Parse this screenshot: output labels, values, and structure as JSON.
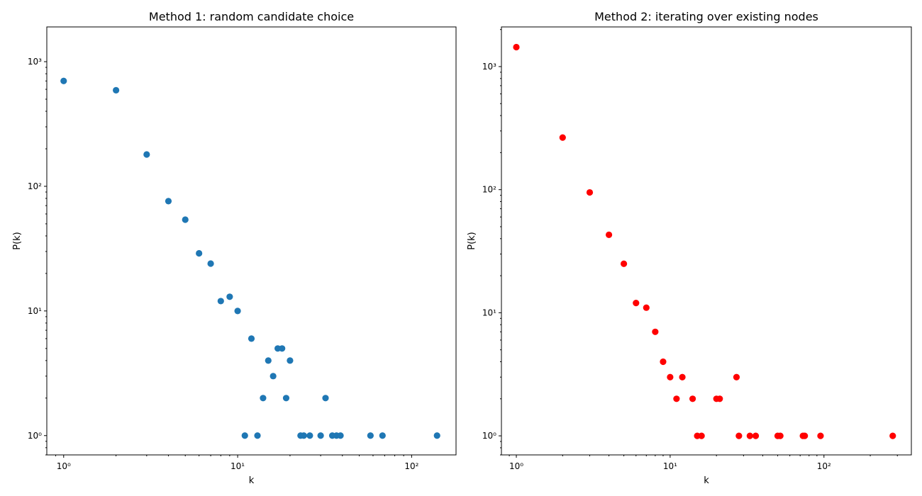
{
  "chart_data": [
    {
      "type": "scatter",
      "title": "Method 1: random candidate choice",
      "xlabel": "k",
      "ylabel": "P(k)",
      "xscale": "log",
      "yscale": "log",
      "xlim": [
        0.8,
        180
      ],
      "ylim": [
        0.7,
        1900
      ],
      "xticks": [
        1,
        10,
        100
      ],
      "yticks": [
        1,
        10,
        100,
        1000
      ],
      "grid": false,
      "color": "#1f77b4",
      "series": [
        {
          "points": [
            [
              1,
              700
            ],
            [
              2,
              590
            ],
            [
              3,
              180
            ],
            [
              4,
              76
            ],
            [
              5,
              54
            ],
            [
              6,
              29
            ],
            [
              7,
              24
            ],
            [
              8,
              12
            ],
            [
              9,
              13
            ],
            [
              10,
              10
            ],
            [
              11,
              1
            ],
            [
              12,
              6
            ],
            [
              13,
              1
            ],
            [
              14,
              2
            ],
            [
              15,
              4
            ],
            [
              16,
              3
            ],
            [
              17,
              5
            ],
            [
              18,
              5
            ],
            [
              19,
              2
            ],
            [
              20,
              4
            ],
            [
              23,
              1
            ],
            [
              24,
              1
            ],
            [
              26,
              1
            ],
            [
              30,
              1
            ],
            [
              32,
              2
            ],
            [
              35,
              1
            ],
            [
              37,
              1
            ],
            [
              39,
              1
            ],
            [
              58,
              1
            ],
            [
              68,
              1
            ],
            [
              140,
              1
            ]
          ]
        }
      ]
    },
    {
      "type": "scatter",
      "title": "Method 2: iterating over existing nodes",
      "xlabel": "k",
      "ylabel": "P(k)",
      "xscale": "log",
      "yscale": "log",
      "xlim": [
        0.8,
        370
      ],
      "ylim": [
        0.7,
        2100
      ],
      "xticks": [
        1,
        10,
        100
      ],
      "yticks": [
        1,
        10,
        100,
        1000
      ],
      "grid": false,
      "color": "#ff0000",
      "series": [
        {
          "points": [
            [
              1,
              1440
            ],
            [
              2,
              265
            ],
            [
              3,
              95
            ],
            [
              4,
              43
            ],
            [
              5,
              25
            ],
            [
              6,
              12
            ],
            [
              7,
              11
            ],
            [
              8,
              7
            ],
            [
              9,
              4
            ],
            [
              10,
              3
            ],
            [
              11,
              2
            ],
            [
              12,
              3
            ],
            [
              14,
              2
            ],
            [
              15,
              1
            ],
            [
              16,
              1
            ],
            [
              20,
              2
            ],
            [
              21,
              2
            ],
            [
              27,
              3
            ],
            [
              28,
              1
            ],
            [
              33,
              1
            ],
            [
              36,
              1
            ],
            [
              50,
              1
            ],
            [
              52,
              1
            ],
            [
              73,
              1
            ],
            [
              75,
              1
            ],
            [
              95,
              1
            ],
            [
              280,
              1
            ]
          ]
        }
      ]
    }
  ]
}
